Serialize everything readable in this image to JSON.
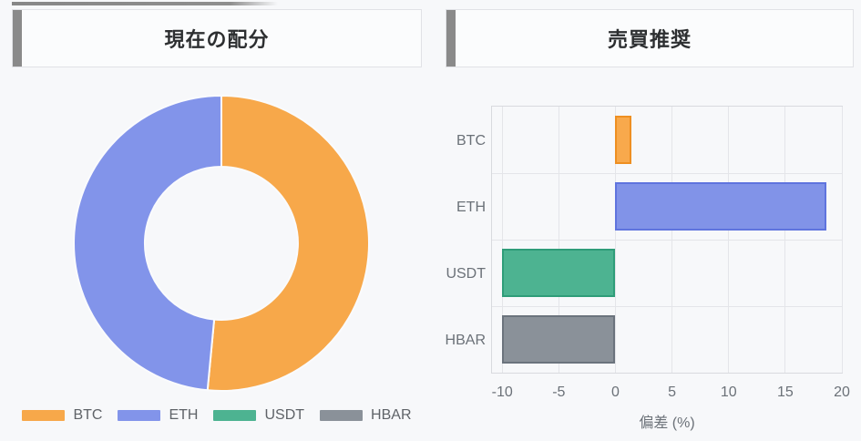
{
  "page": {
    "background": "#f7f8fa",
    "accent_bar_color": "#8a8a8a"
  },
  "left_panel": {
    "title": "現在の配分"
  },
  "right_panel": {
    "title": "売買推奨"
  },
  "chart_data": [
    {
      "type": "pie",
      "donut": true,
      "title": "現在の配分",
      "labels": [
        "BTC",
        "ETH",
        "USDT",
        "HBAR"
      ],
      "values": [
        51.5,
        48.5,
        0,
        0
      ],
      "unit": "%",
      "colors": [
        "#f7a84a",
        "#8294ea",
        "#4db391",
        "#8a9199"
      ],
      "legend_position": "bottom",
      "legend_labels": [
        "BTC",
        "ETH",
        "USDT",
        "HBAR"
      ]
    },
    {
      "type": "bar",
      "orientation": "horizontal",
      "title": "売買推奨",
      "categories": [
        "BTC",
        "ETH",
        "USDT",
        "HBAR"
      ],
      "values": [
        1.4,
        18.6,
        -10,
        -10
      ],
      "xlabel": "偏差 (%)",
      "xticks": [
        -10,
        -5,
        0,
        5,
        10,
        15,
        20
      ],
      "xlim": [
        -10.9,
        20
      ],
      "grid": true,
      "bar_colors": [
        "#f8a94c",
        "#8193e8",
        "#4db391",
        "#8a9199"
      ],
      "bar_border_colors": [
        "#ee8f21",
        "#5f74de",
        "#2f9d79",
        "#6b737d"
      ]
    }
  ]
}
